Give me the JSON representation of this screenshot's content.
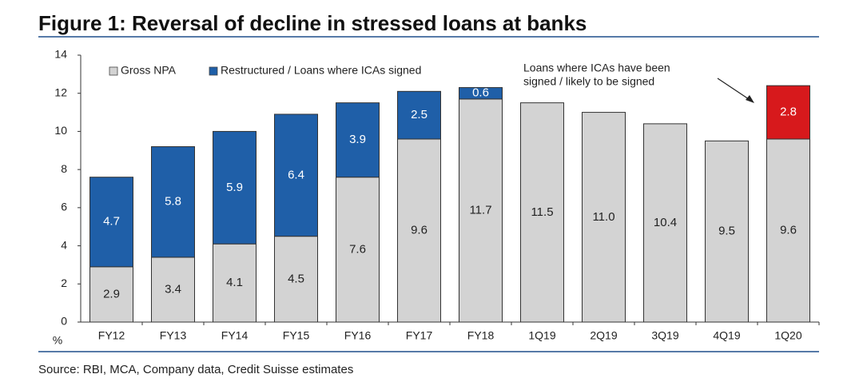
{
  "chart_data": {
    "type": "stacked-bar",
    "title": "Figure 1: Reversal of decline in stressed loans at banks",
    "y_label": "%",
    "source": "Source: RBI, MCA, Company data, Credit Suisse estimates",
    "annotation": [
      "Loans where ICAs have been",
      "signed / likely to be signed"
    ],
    "categories": [
      "FY12",
      "FY13",
      "FY14",
      "FY15",
      "FY16",
      "FY17",
      "FY18",
      "1Q19",
      "2Q19",
      "3Q19",
      "4Q19",
      "1Q20"
    ],
    "series": [
      {
        "name": "Gross NPA",
        "color": "#d3d3d3",
        "values": [
          2.9,
          3.4,
          4.1,
          4.5,
          7.6,
          9.6,
          11.7,
          11.5,
          11.0,
          10.4,
          9.5,
          9.6
        ],
        "value_labels": [
          "2.9",
          "3.4",
          "4.1",
          "4.5",
          "7.6",
          "9.6",
          "11.7",
          "11.5",
          "11.0",
          "10.4",
          "9.5",
          "9.6"
        ]
      },
      {
        "name": "Restructured / Loans where ICAs signed",
        "color": "#1f5fa8",
        "colors": [
          "#1f5fa8",
          "#1f5fa8",
          "#1f5fa8",
          "#1f5fa8",
          "#1f5fa8",
          "#1f5fa8",
          "#1f5fa8",
          "#1f5fa8",
          "#1f5fa8",
          "#1f5fa8",
          "#1f5fa8",
          "#d7191c"
        ],
        "values": [
          4.7,
          5.8,
          5.9,
          6.4,
          3.9,
          2.5,
          0.6,
          null,
          null,
          null,
          null,
          2.8
        ]
      }
    ],
    "ylim": [
      0,
      14
    ],
    "yticks": [
      0,
      2,
      4,
      6,
      8,
      10,
      12,
      14
    ],
    "grid": false
  }
}
